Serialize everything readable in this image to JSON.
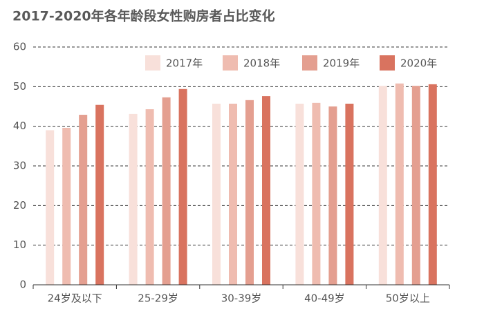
{
  "chart_data": {
    "type": "bar",
    "title": "2017-2020年各年龄段女性购房者占比变化",
    "categories": [
      "24岁及以下",
      "25-29岁",
      "30-39岁",
      "40-49岁",
      "50岁以上"
    ],
    "series": [
      {
        "name": "2017年",
        "color": "#f8e0da",
        "values": [
          39.0,
          43.1,
          45.7,
          45.7,
          50.2
        ]
      },
      {
        "name": "2018年",
        "color": "#efbcb0",
        "values": [
          39.6,
          44.3,
          45.7,
          45.9,
          50.8
        ]
      },
      {
        "name": "2019年",
        "color": "#e49f90",
        "values": [
          42.9,
          47.3,
          46.6,
          45.0,
          50.2
        ]
      },
      {
        "name": "2020年",
        "color": "#d9735f",
        "values": [
          45.4,
          49.4,
          47.6,
          45.7,
          50.6
        ]
      }
    ],
    "ylim": [
      0,
      60
    ],
    "yticks": [
      0,
      10,
      20,
      30,
      40,
      50,
      60
    ],
    "grid": true,
    "legend": "top"
  }
}
